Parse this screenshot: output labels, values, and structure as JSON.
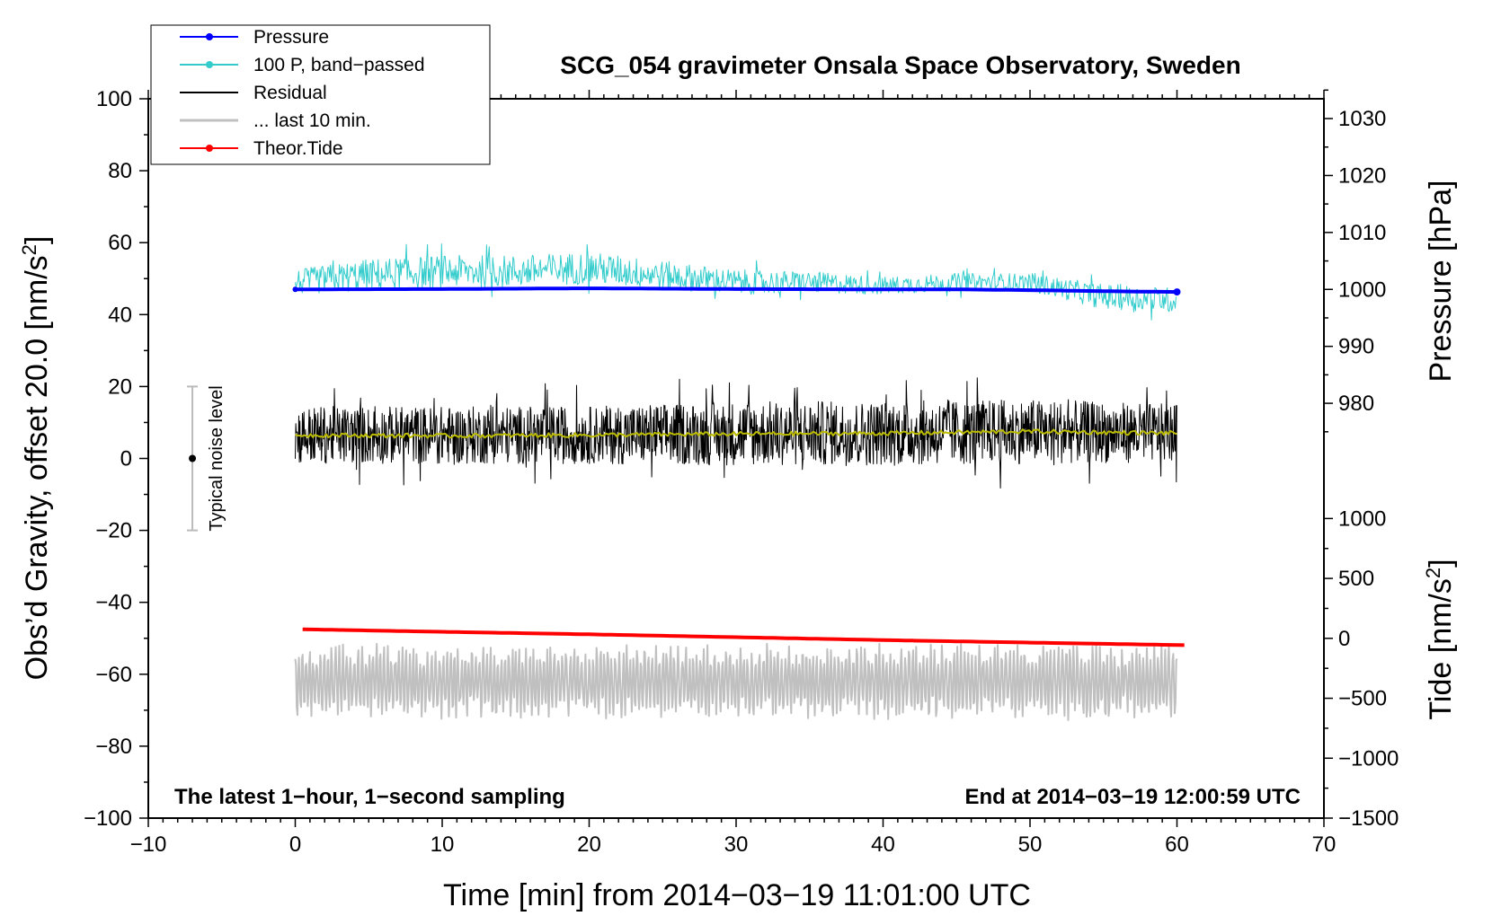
{
  "chart_data": {
    "type": "line",
    "title": "SCG_054 gravimeter Onsala Space Observatory, Sweden",
    "xlabel": "Time [min] from 2014−03−19 11:01:00 UTC",
    "ylabel_main": "Obs’d Gravity, offset 20.0 [nm/s",
    "ylabel_main_sup": "2",
    "ylabel_main_end": "]",
    "ylabel_pressure": "Pressure [hPa]",
    "ylabel_tide": "Tide [nm/s",
    "ylabel_tide_sup": "2",
    "ylabel_tide_end": "]",
    "xlim": [
      -10,
      70
    ],
    "ylim": [
      -100,
      100
    ],
    "x_ticks": [
      -10,
      0,
      10,
      20,
      30,
      40,
      50,
      60,
      70
    ],
    "x_tick_labels": [
      "−10",
      "0",
      "10",
      "20",
      "30",
      "40",
      "50",
      "60",
      "70"
    ],
    "y_ticks": [
      -100,
      -80,
      -60,
      -40,
      -20,
      0,
      20,
      40,
      60,
      80,
      100
    ],
    "y_tick_labels": [
      "−100",
      "−80",
      "−60",
      "−40",
      "−20",
      "0",
      "20",
      "40",
      "60",
      "80",
      "100"
    ],
    "pressure_axis": {
      "ticks": [
        980,
        990,
        1000,
        1010,
        1020,
        1030
      ],
      "tick_labels": [
        "980",
        "990",
        "1000",
        "1010",
        "1020",
        "1030"
      ],
      "map_to_main": {
        "value_a": 1000,
        "main_a": 47,
        "value_b": 1030,
        "main_b": 94.5
      }
    },
    "tide_axis": {
      "ticks": [
        -1500,
        -1000,
        -500,
        0,
        500,
        1000
      ],
      "tick_labels": [
        "−1500",
        "−1000",
        "−500",
        "0",
        "500",
        "1000"
      ],
      "map_to_main": {
        "value_a": -1500,
        "main_a": -100,
        "value_b": 1000,
        "main_b": -16.7
      }
    },
    "series": [
      {
        "name": "Pressure",
        "color": "#0000ff",
        "style": "thick-line",
        "x": [
          0,
          10,
          20,
          30,
          40,
          45,
          50,
          55,
          60
        ],
        "values": [
          47.0,
          47.1,
          47.3,
          47.1,
          47.0,
          47.0,
          46.8,
          46.5,
          46.3
        ]
      },
      {
        "name": "100 P, band−passed",
        "color": "#33cccc",
        "style": "noisy",
        "x": [
          0,
          5,
          10,
          15,
          20,
          25,
          30,
          35,
          40,
          45,
          50,
          55,
          60
        ],
        "values": [
          49,
          51,
          52,
          52,
          53,
          51,
          49,
          49,
          48,
          49,
          49,
          45,
          44
        ],
        "amplitude": [
          3.5,
          4.5,
          4.5,
          4.5,
          4.5,
          4.0,
          3.5,
          3.0,
          2.5,
          2.5,
          2.5,
          3.5,
          3.5
        ]
      },
      {
        "name": "Residual",
        "color": "#000000",
        "style": "noisy",
        "x": [
          0,
          10,
          20,
          30,
          40,
          50,
          60
        ],
        "values": [
          6.5,
          6.5,
          6.5,
          7,
          7,
          7.5,
          7
        ],
        "amplitude": [
          8,
          8,
          8,
          9,
          9,
          9,
          8
        ]
      },
      {
        "name": "Residual (smoothed)",
        "color": "#bbbb00",
        "style": "line",
        "x": [
          0,
          10,
          20,
          30,
          40,
          50,
          60
        ],
        "values": [
          6.5,
          6.3,
          6.5,
          6.8,
          7.0,
          7.5,
          7.0
        ]
      },
      {
        "name": "... last 10 min.",
        "color": "#c0c0c0",
        "style": "oscillating",
        "x": [
          0,
          60
        ],
        "values": [
          -62,
          -62
        ],
        "amplitude": [
          9,
          9
        ]
      },
      {
        "name": "Theor.Tide",
        "color": "#ff0000",
        "style": "thick-line",
        "x": [
          0.5,
          10,
          20,
          30,
          40,
          50,
          60.5
        ],
        "values": [
          -47.5,
          -48.2,
          -48.9,
          -49.7,
          -50.5,
          -51.2,
          -51.9
        ]
      }
    ],
    "legend": {
      "placement": "top-left",
      "entries": [
        {
          "label": "Pressure",
          "color": "#0000ff",
          "marker": true
        },
        {
          "label": "100 P, band−passed",
          "color": "#33cccc",
          "marker": true
        },
        {
          "label": "Residual",
          "color": "#000000",
          "marker": false
        },
        {
          "label": "... last 10 min.",
          "color": "#c0c0c0",
          "marker": false
        },
        {
          "label": "Theor.Tide",
          "color": "#ff0000",
          "marker": true
        }
      ]
    },
    "noise_indicator": {
      "label": "Typical noise level",
      "x": -7,
      "center": 0,
      "low": -20,
      "high": 20
    },
    "annotations": {
      "bottom_left": "The latest 1−hour, 1−second sampling",
      "bottom_right": "End at 2014−03−19 12:00:59 UTC"
    }
  }
}
